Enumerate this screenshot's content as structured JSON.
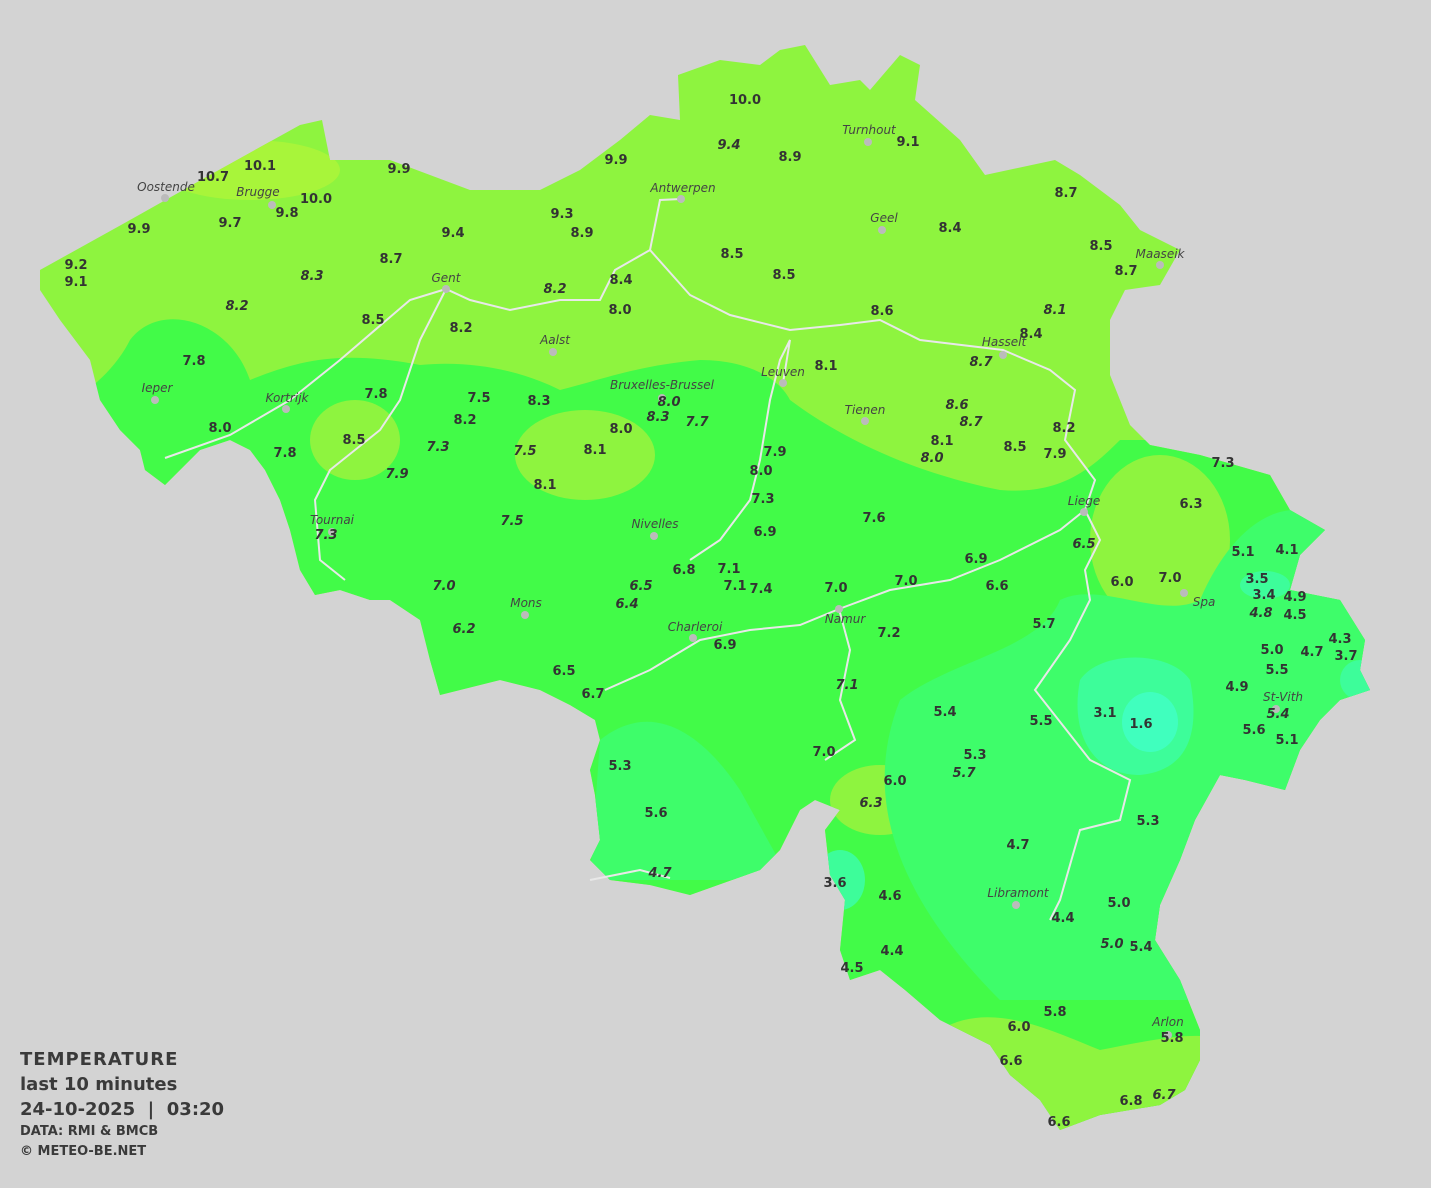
{
  "legend": {
    "title": "TEMPERATURE",
    "period": "last 10 minutes",
    "datetime": "24-10-2025  |  03:20",
    "data_source": "DATA: RMI & BMCB",
    "copyright": "© METEO-BE.NET"
  },
  "colors": {
    "background": "#d3d3d3",
    "zone_8_10": "#8ef43f",
    "zone_10_plus": "#a8f53a",
    "zone_6_8": "#42fb48",
    "zone_4_6": "#3efd6a",
    "zone_2_4": "#3dfd9a",
    "zone_0_2": "#40ffbe",
    "borders": "#e8e8e8",
    "text": "#333333"
  },
  "cities": [
    "Oostende",
    "Brugge",
    "Antwerpen",
    "Turnhout",
    "Geel",
    "Maaseik",
    "Gent",
    "Aalst",
    "Hasselt",
    "Ieper",
    "Kortrijk",
    "Leuven",
    "Bruxelles-Brussel",
    "Tienen",
    "Liege",
    "Tournai",
    "Nivelles",
    "Spa",
    "Mons",
    "Namur",
    "Charleroi",
    "St-Vith",
    "Libramont",
    "Arlon"
  ],
  "stations": [
    {
      "v": "10.0"
    },
    {
      "v": "9.4",
      "i": true
    },
    {
      "v": "8.9"
    },
    {
      "v": "9.1"
    },
    {
      "v": "10.1"
    },
    {
      "v": "10.7"
    },
    {
      "v": "9.9"
    },
    {
      "v": "9.9"
    },
    {
      "v": "10.0"
    },
    {
      "v": "9.8"
    },
    {
      "v": "9.9"
    },
    {
      "v": "9.7"
    },
    {
      "v": "9.3"
    },
    {
      "v": "8.9"
    },
    {
      "v": "9.4"
    },
    {
      "v": "8.7"
    },
    {
      "v": "8.4"
    },
    {
      "v": "8.5"
    },
    {
      "v": "8.5"
    },
    {
      "v": "8.5"
    },
    {
      "v": "8.7"
    },
    {
      "v": "9.2"
    },
    {
      "v": "9.1"
    },
    {
      "v": "8.3",
      "i": true
    },
    {
      "v": "8.7"
    },
    {
      "v": "8.2",
      "i": true
    },
    {
      "v": "8.2",
      "i": true
    },
    {
      "v": "8.4"
    },
    {
      "v": "8.0"
    },
    {
      "v": "8.5"
    },
    {
      "v": "8.2"
    },
    {
      "v": "8.6"
    },
    {
      "v": "8.1",
      "i": true
    },
    {
      "v": "8.4"
    },
    {
      "v": "8.7",
      "i": true
    },
    {
      "v": "7.8"
    },
    {
      "v": "8.1"
    },
    {
      "v": "7.8"
    },
    {
      "v": "7.5"
    },
    {
      "v": "8.3"
    },
    {
      "v": "8.0",
      "i": true
    },
    {
      "v": "8.3",
      "i": true
    },
    {
      "v": "7.7",
      "i": true
    },
    {
      "v": "8.6",
      "i": true
    },
    {
      "v": "8.7",
      "i": true
    },
    {
      "v": "8.2"
    },
    {
      "v": "8.0"
    },
    {
      "v": "8.0"
    },
    {
      "v": "8.2"
    },
    {
      "v": "8.5"
    },
    {
      "v": "7.3",
      "i": true
    },
    {
      "v": "7.5",
      "i": true
    },
    {
      "v": "8.1"
    },
    {
      "v": "7.9"
    },
    {
      "v": "8.1"
    },
    {
      "v": "8.0",
      "i": true
    },
    {
      "v": "8.5"
    },
    {
      "v": "7.9"
    },
    {
      "v": "7.8"
    },
    {
      "v": "7.9",
      "i": true
    },
    {
      "v": "8.0"
    },
    {
      "v": "8.1"
    },
    {
      "v": "7.3"
    },
    {
      "v": "7.3"
    },
    {
      "v": "6.3"
    },
    {
      "v": "7.5",
      "i": true
    },
    {
      "v": "7.3",
      "i": true
    },
    {
      "v": "7.6"
    },
    {
      "v": "6.9"
    },
    {
      "v": "6.5",
      "i": true
    },
    {
      "v": "5.1"
    },
    {
      "v": "4.1"
    },
    {
      "v": "6.9"
    },
    {
      "v": "6.8"
    },
    {
      "v": "7.1"
    },
    {
      "v": "6.5",
      "i": true
    },
    {
      "v": "7.1"
    },
    {
      "v": "7.4"
    },
    {
      "v": "7.0"
    },
    {
      "v": "7.0"
    },
    {
      "v": "6.6"
    },
    {
      "v": "7.0",
      "i": true
    },
    {
      "v": "6.0"
    },
    {
      "v": "7.0"
    },
    {
      "v": "3.5"
    },
    {
      "v": "3.4"
    },
    {
      "v": "4.9"
    },
    {
      "v": "4.8",
      "i": true
    },
    {
      "v": "4.5"
    },
    {
      "v": "6.4",
      "i": true
    },
    {
      "v": "6.2",
      "i": true
    },
    {
      "v": "7.2"
    },
    {
      "v": "5.7"
    },
    {
      "v": "5.0"
    },
    {
      "v": "4.7"
    },
    {
      "v": "4.3"
    },
    {
      "v": "3.7"
    },
    {
      "v": "6.9"
    },
    {
      "v": "5.5"
    },
    {
      "v": "6.5"
    },
    {
      "v": "6.7"
    },
    {
      "v": "7.1",
      "i": true
    },
    {
      "v": "4.9"
    },
    {
      "v": "5.4"
    },
    {
      "v": "5.5"
    },
    {
      "v": "3.1"
    },
    {
      "v": "1.6"
    },
    {
      "v": "5.4",
      "i": true
    },
    {
      "v": "5.6"
    },
    {
      "v": "5.1"
    },
    {
      "v": "7.0"
    },
    {
      "v": "5.3"
    },
    {
      "v": "5.7",
      "i": true
    },
    {
      "v": "5.3"
    },
    {
      "v": "6.0"
    },
    {
      "v": "6.3",
      "i": true
    },
    {
      "v": "5.6"
    },
    {
      "v": "5.3"
    },
    {
      "v": "4.7"
    },
    {
      "v": "4.7",
      "i": true
    },
    {
      "v": "3.6"
    },
    {
      "v": "4.6"
    },
    {
      "v": "5.0"
    },
    {
      "v": "4.4"
    },
    {
      "v": "5.0",
      "i": true
    },
    {
      "v": "5.4"
    },
    {
      "v": "4.4"
    },
    {
      "v": "4.5"
    },
    {
      "v": "5.8"
    },
    {
      "v": "6.0"
    },
    {
      "v": "5.8"
    },
    {
      "v": "6.6"
    },
    {
      "v": "6.7",
      "i": true
    },
    {
      "v": "6.8"
    },
    {
      "v": "6.6"
    }
  ]
}
